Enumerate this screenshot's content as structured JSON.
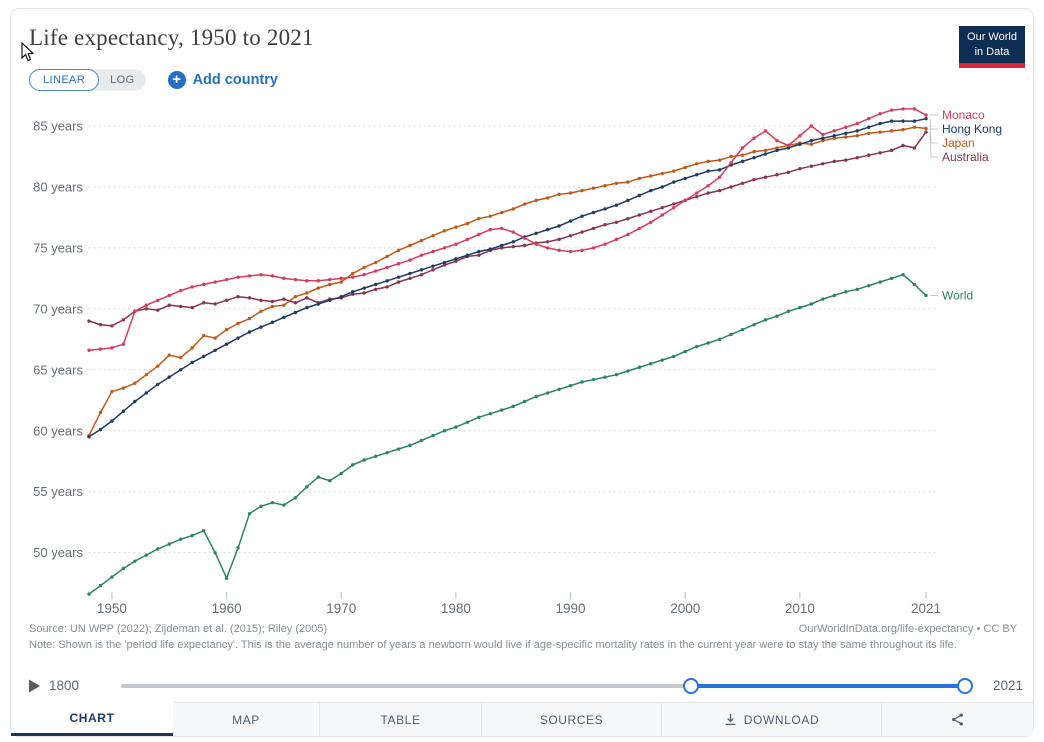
{
  "header": {
    "title": "Life expectancy, 1950 to 2021",
    "scale_toggle": {
      "linear": "LINEAR",
      "log": "LOG",
      "selected": "LINEAR"
    },
    "add_country_label": "Add country",
    "logo_line1": "Our World",
    "logo_line2": "in Data",
    "logo_colors": {
      "background": "#0d2e52",
      "bar": "#e0233c"
    }
  },
  "chart_data": {
    "type": "line",
    "title": "Life expectancy, 1950 to 2021",
    "xlabel": "",
    "ylabel": "",
    "unit_suffix": " years",
    "x_range": [
      1948,
      2021
    ],
    "x_step": 1,
    "xticks": [
      1950,
      1960,
      1970,
      1980,
      1990,
      2000,
      2010,
      2021
    ],
    "yticks": [
      50,
      55,
      60,
      65,
      70,
      75,
      80,
      85
    ],
    "ylim": [
      46,
      87.5
    ],
    "grid": "horizontal-dotted",
    "legend_position": "right-end-of-line-labels",
    "series": [
      {
        "name": "World",
        "color": "#2c8465",
        "values": [
          46.6,
          47.3,
          48.0,
          48.7,
          49.3,
          49.8,
          50.3,
          50.7,
          51.1,
          51.4,
          51.8,
          50.0,
          47.9,
          50.4,
          53.2,
          53.8,
          54.1,
          53.9,
          54.5,
          55.4,
          56.2,
          55.9,
          56.5,
          57.2,
          57.6,
          57.9,
          58.2,
          58.5,
          58.8,
          59.2,
          59.6,
          60.0,
          60.3,
          60.7,
          61.1,
          61.4,
          61.7,
          62.0,
          62.4,
          62.8,
          63.1,
          63.4,
          63.7,
          64.0,
          64.2,
          64.4,
          64.6,
          64.9,
          65.2,
          65.5,
          65.8,
          66.1,
          66.5,
          66.9,
          67.2,
          67.5,
          67.9,
          68.3,
          68.7,
          69.1,
          69.4,
          69.8,
          70.1,
          70.4,
          70.8,
          71.1,
          71.4,
          71.6,
          71.9,
          72.2,
          72.5,
          72.8,
          72.0,
          71.1
        ]
      },
      {
        "name": "Australia",
        "color": "#8a3352",
        "values": [
          69.0,
          68.7,
          68.6,
          69.1,
          69.8,
          70.0,
          69.9,
          70.3,
          70.2,
          70.1,
          70.5,
          70.4,
          70.7,
          71.0,
          70.9,
          70.7,
          70.6,
          70.8,
          70.5,
          70.9,
          70.5,
          70.8,
          70.9,
          71.2,
          71.3,
          71.6,
          71.8,
          72.2,
          72.5,
          72.8,
          73.2,
          73.6,
          73.9,
          74.3,
          74.4,
          74.8,
          75.0,
          75.1,
          75.2,
          75.4,
          75.5,
          75.7,
          76.0,
          76.3,
          76.6,
          76.9,
          77.1,
          77.4,
          77.7,
          78.0,
          78.3,
          78.6,
          78.9,
          79.2,
          79.5,
          79.7,
          80.0,
          80.3,
          80.6,
          80.8,
          81.0,
          81.2,
          81.5,
          81.7,
          81.9,
          82.1,
          82.2,
          82.4,
          82.6,
          82.8,
          83.0,
          83.4,
          83.2,
          84.5
        ]
      },
      {
        "name": "Japan",
        "color": "#bf5a18",
        "values": [
          59.6,
          61.5,
          63.2,
          63.5,
          63.9,
          64.6,
          65.3,
          66.2,
          66.0,
          66.8,
          67.8,
          67.6,
          68.3,
          68.8,
          69.2,
          69.8,
          70.2,
          70.3,
          71.0,
          71.3,
          71.7,
          72.0,
          72.2,
          72.9,
          73.4,
          73.8,
          74.3,
          74.8,
          75.2,
          75.6,
          76.0,
          76.4,
          76.7,
          77.0,
          77.4,
          77.6,
          77.9,
          78.2,
          78.6,
          78.9,
          79.1,
          79.4,
          79.5,
          79.7,
          79.9,
          80.1,
          80.3,
          80.4,
          80.7,
          80.9,
          81.1,
          81.3,
          81.6,
          81.9,
          82.1,
          82.2,
          82.5,
          82.6,
          82.9,
          83.0,
          83.2,
          83.4,
          83.6,
          83.5,
          83.8,
          84.0,
          84.1,
          84.2,
          84.4,
          84.5,
          84.6,
          84.7,
          84.9,
          84.8
        ]
      },
      {
        "name": "Hong Kong",
        "color": "#1d3d63",
        "values": [
          59.5,
          60.1,
          60.8,
          61.6,
          62.4,
          63.1,
          63.8,
          64.4,
          65.0,
          65.6,
          66.1,
          66.6,
          67.1,
          67.6,
          68.1,
          68.5,
          68.9,
          69.3,
          69.7,
          70.1,
          70.4,
          70.7,
          71.0,
          71.4,
          71.7,
          72.0,
          72.3,
          72.6,
          72.9,
          73.2,
          73.5,
          73.8,
          74.1,
          74.4,
          74.7,
          74.9,
          75.2,
          75.5,
          75.9,
          76.2,
          76.5,
          76.8,
          77.2,
          77.6,
          77.9,
          78.2,
          78.5,
          78.9,
          79.3,
          79.7,
          80.0,
          80.4,
          80.7,
          81.0,
          81.3,
          81.4,
          81.8,
          82.1,
          82.4,
          82.7,
          83.0,
          83.2,
          83.5,
          83.8,
          84.0,
          84.2,
          84.4,
          84.6,
          84.9,
          85.2,
          85.4,
          85.4,
          85.4,
          85.6
        ]
      },
      {
        "name": "Monaco",
        "color": "#d63c5f",
        "values": [
          66.6,
          66.7,
          66.8,
          67.1,
          69.8,
          70.3,
          70.7,
          71.1,
          71.5,
          71.8,
          72.0,
          72.2,
          72.4,
          72.6,
          72.7,
          72.8,
          72.7,
          72.5,
          72.4,
          72.3,
          72.3,
          72.4,
          72.5,
          72.6,
          72.8,
          73.1,
          73.4,
          73.7,
          74.0,
          74.4,
          74.7,
          75.0,
          75.3,
          75.7,
          76.1,
          76.5,
          76.6,
          76.3,
          75.8,
          75.3,
          75.0,
          74.8,
          74.7,
          74.8,
          75.0,
          75.3,
          75.7,
          76.1,
          76.6,
          77.1,
          77.7,
          78.3,
          78.9,
          79.5,
          80.1,
          80.8,
          82.0,
          83.2,
          84.0,
          84.6,
          83.8,
          83.4,
          84.2,
          85.0,
          84.3,
          84.6,
          84.9,
          85.2,
          85.6,
          86.0,
          86.3,
          86.4,
          86.4,
          85.9
        ]
      }
    ]
  },
  "footer": {
    "source": "Source: UN WPP (2022); Zijdeman et al. (2015); Riley (2005)",
    "attribution": "OurWorldInData.org/life-expectancy • CC BY",
    "note": "Note: Shown is the 'period life expectancy'. This is the average number of years a newborn would live if age-specific mortality rates in the current year were to stay the same throughout its life."
  },
  "timeline": {
    "start_label": "1800",
    "end_label": "2021",
    "full_range": [
      1800,
      2021
    ],
    "selected_range": [
      1950,
      2021
    ]
  },
  "tabs": [
    {
      "label": "CHART",
      "active": true
    },
    {
      "label": "MAP",
      "active": false
    },
    {
      "label": "TABLE",
      "active": false
    },
    {
      "label": "SOURCES",
      "active": false
    },
    {
      "label": "DOWNLOAD",
      "active": false,
      "icon": "download-icon"
    },
    {
      "label": "",
      "active": false,
      "icon": "share-icon"
    }
  ]
}
